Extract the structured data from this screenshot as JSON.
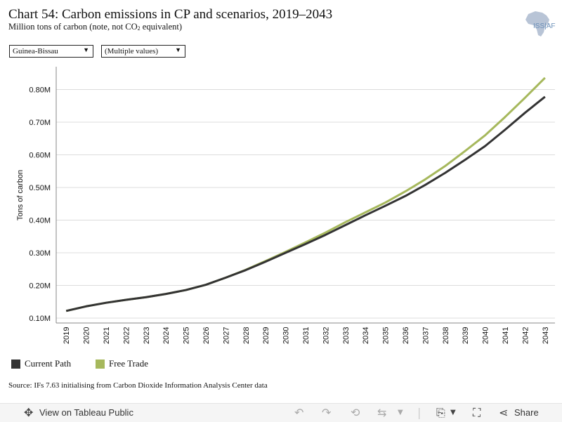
{
  "header": {
    "title": "Chart 54: Carbon emissions in CP and scenarios, 2019–2043",
    "subtitle_main": "Million tons of carbon (note, not CO",
    "subtitle_sub": "2",
    "subtitle_end": " equivalent)",
    "logo_text": "ISS|AF"
  },
  "filters": {
    "country": "Guinea-Bissau",
    "scenario": "(Multiple values)"
  },
  "legend": [
    {
      "label": "Current Path",
      "color": "#333333"
    },
    {
      "label": "Free Trade",
      "color": "#a6b85c"
    }
  ],
  "source": "Source: IFs 7.63 initialising from Carbon Dioxide Information Analysis Center data",
  "toolbar": {
    "view_label": "View on Tableau Public",
    "share_label": "Share"
  },
  "chart_data": {
    "type": "line",
    "title": "Chart 54: Carbon emissions in CP and scenarios, 2019–2043",
    "ylabel": "Tons of carbon",
    "xlabel": "",
    "x": [
      2019,
      2020,
      2021,
      2022,
      2023,
      2024,
      2025,
      2026,
      2027,
      2028,
      2029,
      2030,
      2031,
      2032,
      2033,
      2034,
      2035,
      2036,
      2037,
      2038,
      2039,
      2040,
      2041,
      2042,
      2043
    ],
    "yticks": [
      0.1,
      0.2,
      0.3,
      0.4,
      0.5,
      0.6,
      0.7,
      0.8
    ],
    "ytick_labels": [
      "0.10M",
      "0.20M",
      "0.30M",
      "0.40M",
      "0.50M",
      "0.60M",
      "0.70M",
      "0.80M"
    ],
    "ylim": [
      0.085,
      0.87
    ],
    "grid": true,
    "legend_position": "bottom-left",
    "series": [
      {
        "name": "Current Path",
        "color": "#333333",
        "values": [
          0.122,
          0.136,
          0.147,
          0.156,
          0.164,
          0.174,
          0.186,
          0.202,
          0.224,
          0.247,
          0.273,
          0.3,
          0.327,
          0.355,
          0.385,
          0.415,
          0.444,
          0.474,
          0.508,
          0.545,
          0.585,
          0.627,
          0.677,
          0.729,
          0.778
        ]
      },
      {
        "name": "Free Trade",
        "color": "#a6b85c",
        "values": [
          0.122,
          0.136,
          0.147,
          0.156,
          0.164,
          0.174,
          0.186,
          0.202,
          0.224,
          0.248,
          0.275,
          0.303,
          0.332,
          0.362,
          0.394,
          0.424,
          0.454,
          0.488,
          0.525,
          0.566,
          0.612,
          0.66,
          0.716,
          0.775,
          0.836
        ]
      }
    ]
  }
}
